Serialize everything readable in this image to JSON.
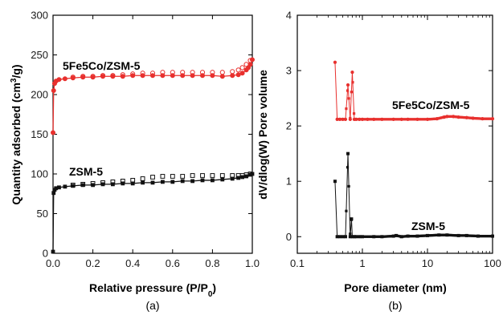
{
  "chart_data": [
    {
      "type": "scatter",
      "panel_label": "(a)",
      "xlabel": "Relative pressure (P/P",
      "xlabel_sub": "0",
      "xlabel_end": ")",
      "ylabel": "Quantity adsorbed (cm",
      "ylabel_sup": "3",
      "ylabel_end": "/g)",
      "xlim": [
        0.0,
        1.0
      ],
      "ylim": [
        0,
        300
      ],
      "xticks": [
        "0.0",
        "0.2",
        "0.4",
        "0.6",
        "0.8",
        "1.0"
      ],
      "yticks": [
        "0",
        "50",
        "100",
        "150",
        "200",
        "250",
        "300"
      ],
      "annotations": [
        "5Fe5Co/ZSM-5",
        "ZSM-5"
      ],
      "series": [
        {
          "name": "5Fe5Co/ZSM-5",
          "color": "#e8302e",
          "x": [
            0.0,
            0.003,
            0.008,
            0.015,
            0.03,
            0.06,
            0.1,
            0.15,
            0.2,
            0.25,
            0.3,
            0.35,
            0.4,
            0.45,
            0.5,
            0.55,
            0.6,
            0.65,
            0.7,
            0.75,
            0.8,
            0.85,
            0.9,
            0.93,
            0.95,
            0.97,
            0.98,
            0.99,
            1.0
          ],
          "adsorption": [
            152,
            205,
            214,
            217,
            219,
            220,
            221,
            222,
            222,
            223,
            223,
            223,
            224,
            224,
            224,
            224,
            224,
            224,
            224,
            224,
            224,
            223,
            224,
            225,
            227,
            231,
            234,
            238,
            244
          ],
          "desorption_x": [
            0.1,
            0.15,
            0.2,
            0.25,
            0.3,
            0.35,
            0.4,
            0.45,
            0.5,
            0.55,
            0.6,
            0.65,
            0.7,
            0.75,
            0.8,
            0.85,
            0.9,
            0.93,
            0.95,
            0.97,
            0.99
          ],
          "desorption": [
            222,
            223,
            223,
            224,
            224,
            225,
            226,
            227,
            227,
            228,
            228,
            228,
            228,
            228,
            228,
            228,
            229,
            231,
            234,
            238,
            243
          ]
        },
        {
          "name": "ZSM-5",
          "color": "#111111",
          "x": [
            0.0,
            0.003,
            0.008,
            0.015,
            0.03,
            0.06,
            0.1,
            0.15,
            0.2,
            0.25,
            0.3,
            0.35,
            0.4,
            0.45,
            0.5,
            0.55,
            0.6,
            0.65,
            0.7,
            0.75,
            0.8,
            0.85,
            0.9,
            0.93,
            0.95,
            0.97,
            0.99,
            1.0
          ],
          "adsorption": [
            2,
            76,
            80,
            82,
            83,
            84,
            85,
            86,
            86,
            87,
            87,
            88,
            88,
            89,
            89,
            90,
            90,
            91,
            91,
            92,
            92,
            93,
            94,
            95,
            96,
            97,
            99,
            100
          ],
          "desorption_x": [
            0.1,
            0.15,
            0.2,
            0.25,
            0.3,
            0.35,
            0.4,
            0.45,
            0.5,
            0.55,
            0.6,
            0.65,
            0.7,
            0.75,
            0.8,
            0.85,
            0.9,
            0.93,
            0.95,
            0.97,
            0.99
          ],
          "desorption": [
            86,
            87,
            88,
            89,
            90,
            91,
            92,
            94,
            96,
            97,
            97,
            97,
            98,
            98,
            98,
            98,
            98,
            98,
            98,
            99,
            100
          ]
        }
      ]
    },
    {
      "type": "line",
      "panel_label": "(b)",
      "xlabel": "Pore diameter (nm)",
      "ylabel": "dV/dlog(W) Pore volume",
      "xscale": "log",
      "xlim": [
        0.1,
        100
      ],
      "ylim": [
        -0.3,
        4.0
      ],
      "xticks": [
        "0.1",
        "1",
        "10",
        "100"
      ],
      "yticks": [
        "0",
        "1",
        "2",
        "3",
        "4"
      ],
      "annotations": [
        "5Fe5Co/ZSM-5",
        "ZSM-5"
      ],
      "series": [
        {
          "name": "5Fe5Co/ZSM-5",
          "color": "#e8302e",
          "x": [
            0.38,
            0.41,
            0.45,
            0.5,
            0.55,
            0.6,
            0.65,
            0.7,
            0.75,
            0.8,
            0.9,
            1.0,
            1.2,
            1.5,
            2,
            3,
            4,
            5,
            7,
            10,
            14,
            18,
            20,
            25,
            30,
            40,
            50,
            70,
            100
          ],
          "values": [
            3.15,
            2.12,
            2.12,
            2.12,
            2.12,
            2.74,
            2.12,
            2.97,
            2.12,
            2.12,
            2.12,
            2.12,
            2.12,
            2.12,
            2.12,
            2.12,
            2.12,
            2.12,
            2.12,
            2.12,
            2.13,
            2.16,
            2.17,
            2.17,
            2.16,
            2.15,
            2.14,
            2.13,
            2.13
          ]
        },
        {
          "name": "ZSM-5",
          "color": "#111111",
          "x": [
            0.38,
            0.41,
            0.45,
            0.5,
            0.55,
            0.6,
            0.65,
            0.68,
            0.7,
            0.75,
            0.8,
            0.9,
            1.0,
            1.5,
            2,
            3,
            3.3,
            4,
            5,
            7,
            10,
            15,
            20,
            30,
            40,
            60,
            100
          ],
          "values": [
            1.0,
            0.0,
            0.0,
            0.0,
            0.0,
            1.5,
            0.0,
            0.32,
            0.0,
            0.0,
            0.0,
            0.0,
            0.0,
            0.0,
            0.0,
            0.01,
            0.02,
            0.0,
            0.01,
            0.01,
            0.02,
            0.03,
            0.03,
            0.02,
            0.02,
            0.01,
            0.01
          ]
        }
      ]
    }
  ]
}
